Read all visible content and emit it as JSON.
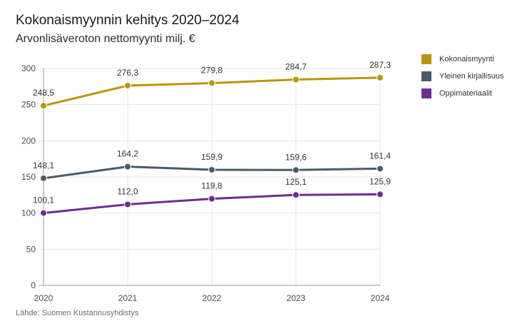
{
  "chart_data": {
    "type": "line",
    "title": "Kokonaismyynnin kehitys 2020–2024",
    "subtitle": "Arvonlisäveroton nettomyynti milj. €",
    "source": "Lähde: Suomen Kustannusyhdistys",
    "categories": [
      "2020",
      "2021",
      "2022",
      "2023",
      "2024"
    ],
    "series": [
      {
        "name": "Kokonaismyynti",
        "color": "#b8960f",
        "values": [
          248.5,
          276.3,
          279.8,
          284.7,
          287.3
        ],
        "labels": [
          "248,5",
          "276,3",
          "279,8",
          "284,7",
          "287,3"
        ]
      },
      {
        "name": "Yleinen kirjallisuus",
        "color": "#4a5b67",
        "values": [
          148.1,
          164.2,
          159.9,
          159.6,
          161.4
        ],
        "labels": [
          "148,1",
          "164,2",
          "159,9",
          "159,6",
          "161,4"
        ]
      },
      {
        "name": "Oppimateriaalit",
        "color": "#6e2d91",
        "values": [
          100.1,
          112.0,
          119.8,
          125.1,
          125.9
        ],
        "labels": [
          "100,1",
          "112,0",
          "119,8",
          "125,1",
          "125,9"
        ]
      }
    ],
    "yticks": [
      0,
      50,
      100,
      150,
      200,
      250,
      300
    ],
    "ylim": [
      0,
      300
    ],
    "grid": true,
    "legend_position": "right"
  }
}
